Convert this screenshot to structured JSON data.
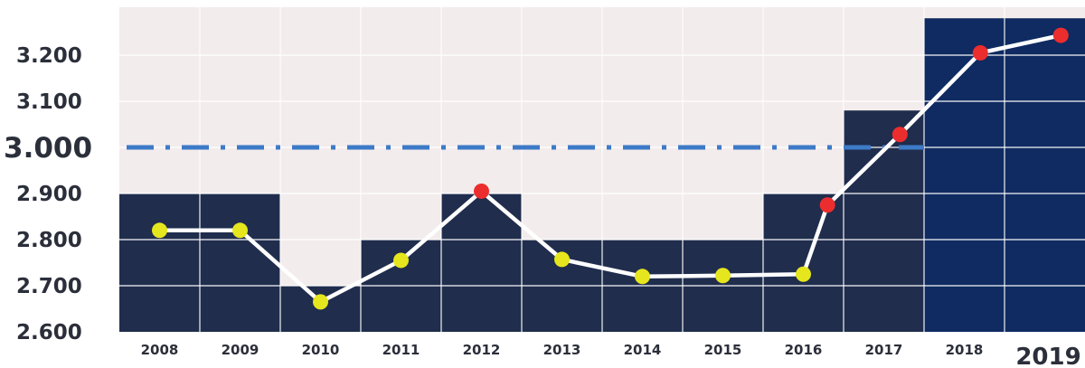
{
  "chart_data": {
    "type": "bar",
    "categories": [
      "2008",
      "2009",
      "2010",
      "2011",
      "2012",
      "2013",
      "2014",
      "2015",
      "2016",
      "2017",
      "2018",
      "2019"
    ],
    "x_labels_emphasized": [
      "2019"
    ],
    "bars": [
      2.9,
      2.9,
      2.7,
      2.8,
      2.9,
      2.8,
      2.8,
      2.8,
      2.9,
      3.08,
      3.28,
      3.28
    ],
    "line": [
      2.82,
      2.82,
      2.665,
      2.755,
      2.905,
      2.757,
      2.72,
      2.722,
      2.725,
      2.875,
      3.028,
      3.205,
      3.243
    ],
    "line_x": [
      0.5,
      1.5,
      2.5,
      3.5,
      4.5,
      5.5,
      6.5,
      7.5,
      8.5,
      8.8,
      9.7,
      10.7,
      11.7
    ],
    "point_colors": [
      "#e6e61e",
      "#e6e61e",
      "#e6e61e",
      "#e6e61e",
      "#ec2d2d",
      "#e6e61e",
      "#e6e61e",
      "#e6e61e",
      "#e6e61e",
      "#ec2d2d",
      "#ec2d2d",
      "#ec2d2d",
      "#ec2d2d"
    ],
    "reference_line": 3.0,
    "yticks": [
      "2.600",
      "2.700",
      "2.800",
      "2.900",
      "3.000",
      "3.100",
      "3.200"
    ],
    "ytick_values": [
      2.6,
      2.7,
      2.8,
      2.9,
      3.0,
      3.1,
      3.2
    ],
    "y_label_emphasized": [
      "3.000"
    ],
    "ylim": [
      2.6,
      3.28
    ],
    "grid": true,
    "title": "",
    "xlabel": "",
    "ylabel": ""
  },
  "colors": {
    "bar_dark": "#202d4d",
    "bar_bright": "#0f2b61",
    "background": "#f3ecec",
    "grid": "#ffffff",
    "line": "#ffffff",
    "reference_line": "#3d7ac8",
    "text": "#2b2f3a"
  }
}
